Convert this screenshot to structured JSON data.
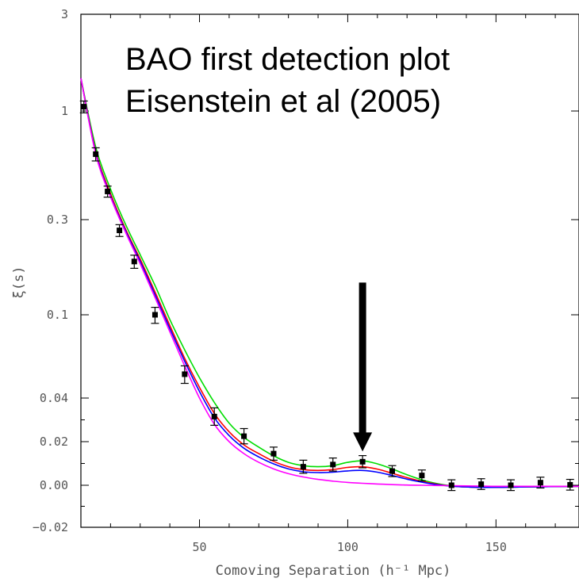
{
  "chart_data": {
    "type": "line",
    "annotation_lines": [
      "BAO first detection plot",
      "Eisenstein et al (2005)"
    ],
    "xlabel": "Comoving Separation (h⁻¹ Mpc)",
    "ylabel": "ξ(s)",
    "xlim": [
      10,
      178
    ],
    "x_ticks": [
      50,
      100,
      150
    ],
    "x_tick_labels": [
      "50",
      "100",
      "150"
    ],
    "y_ticks": [
      -0.02,
      0.0,
      0.02,
      0.04,
      0.1,
      0.3,
      1,
      3
    ],
    "y_tick_labels": [
      "−0.02",
      "0.00",
      "0.02",
      "0.04",
      "0.1",
      "0.3",
      "1",
      "3"
    ],
    "ylim": [
      -0.02,
      3
    ],
    "y_scale": "piecewise (linear near zero, log above)",
    "grid": false,
    "points": [
      {
        "x": 11,
        "y": 1.05,
        "err": 0.07
      },
      {
        "x": 15,
        "y": 0.62,
        "err": 0.045
      },
      {
        "x": 19,
        "y": 0.41,
        "err": 0.025
      },
      {
        "x": 23,
        "y": 0.265,
        "err": 0.018
      },
      {
        "x": 28,
        "y": 0.185,
        "err": 0.014
      },
      {
        "x": 35,
        "y": 0.1,
        "err": 0.009
      },
      {
        "x": 45,
        "y": 0.052,
        "err": 0.005
      },
      {
        "x": 55,
        "y": 0.0315,
        "err": 0.004
      },
      {
        "x": 65,
        "y": 0.0225,
        "err": 0.0035
      },
      {
        "x": 75,
        "y": 0.0145,
        "err": 0.003
      },
      {
        "x": 85,
        "y": 0.0085,
        "err": 0.003
      },
      {
        "x": 95,
        "y": 0.0095,
        "err": 0.003
      },
      {
        "x": 105,
        "y": 0.0108,
        "err": 0.0028
      },
      {
        "x": 115,
        "y": 0.0065,
        "err": 0.0025
      },
      {
        "x": 125,
        "y": 0.0045,
        "err": 0.0025
      },
      {
        "x": 135,
        "y": 0.0,
        "err": 0.0025
      },
      {
        "x": 145,
        "y": 0.0005,
        "err": 0.0025
      },
      {
        "x": 155,
        "y": 0.0,
        "err": 0.0025
      },
      {
        "x": 165,
        "y": 0.0012,
        "err": 0.0025
      },
      {
        "x": 175,
        "y": 0.0002,
        "err": 0.0025
      }
    ],
    "series": [
      {
        "color": "#00dd00",
        "x": [
          10,
          15,
          20,
          25,
          30,
          35,
          40,
          45,
          50,
          55,
          60,
          65,
          70,
          75,
          80,
          85,
          90,
          95,
          100,
          105,
          110,
          115,
          120,
          125,
          130,
          135,
          140,
          145,
          150,
          160,
          170,
          178
        ],
        "values": [
          1.45,
          0.67,
          0.42,
          0.285,
          0.2,
          0.14,
          0.095,
          0.068,
          0.05,
          0.038,
          0.0285,
          0.022,
          0.0175,
          0.0135,
          0.0105,
          0.009,
          0.0085,
          0.009,
          0.0105,
          0.0112,
          0.0098,
          0.0075,
          0.0048,
          0.0025,
          0.0008,
          -0.0003,
          -0.0008,
          -0.001,
          -0.001,
          -0.0008,
          -0.0006,
          -0.0005
        ]
      },
      {
        "color": "#ff0000",
        "x": [
          10,
          15,
          20,
          25,
          30,
          35,
          40,
          45,
          50,
          55,
          60,
          65,
          70,
          75,
          80,
          85,
          90,
          95,
          100,
          105,
          110,
          115,
          120,
          125,
          130,
          135,
          140,
          145,
          150,
          160,
          170,
          178
        ],
        "values": [
          1.45,
          0.64,
          0.4,
          0.27,
          0.19,
          0.13,
          0.089,
          0.062,
          0.045,
          0.033,
          0.0245,
          0.0185,
          0.0145,
          0.011,
          0.0085,
          0.0072,
          0.0068,
          0.0072,
          0.0082,
          0.0085,
          0.0074,
          0.0055,
          0.0035,
          0.0018,
          0.0005,
          -0.0004,
          -0.0008,
          -0.001,
          -0.001,
          -0.0008,
          -0.0006,
          -0.0005
        ]
      },
      {
        "color": "#0000ff",
        "x": [
          10,
          15,
          20,
          25,
          30,
          35,
          40,
          45,
          50,
          55,
          60,
          65,
          70,
          75,
          80,
          85,
          90,
          95,
          100,
          105,
          110,
          115,
          120,
          125,
          130,
          135,
          140,
          145,
          150,
          160,
          170,
          178
        ],
        "values": [
          1.45,
          0.63,
          0.39,
          0.265,
          0.185,
          0.126,
          0.086,
          0.06,
          0.043,
          0.031,
          0.0228,
          0.017,
          0.013,
          0.0098,
          0.0075,
          0.0062,
          0.0058,
          0.006,
          0.0066,
          0.0068,
          0.006,
          0.0045,
          0.0028,
          0.0014,
          0.0003,
          -0.0004,
          -0.0008,
          -0.001,
          -0.001,
          -0.0008,
          -0.0006,
          -0.0005
        ]
      },
      {
        "color": "#ff00ff",
        "x": [
          10,
          15,
          20,
          25,
          30,
          35,
          40,
          45,
          50,
          55,
          60,
          65,
          70,
          75,
          80,
          85,
          90,
          95,
          100,
          105,
          110,
          115,
          120,
          125,
          130,
          135,
          140,
          145,
          150,
          160,
          170,
          178
        ],
        "values": [
          1.45,
          0.62,
          0.385,
          0.26,
          0.18,
          0.122,
          0.083,
          0.057,
          0.04,
          0.028,
          0.02,
          0.0145,
          0.0105,
          0.0075,
          0.0053,
          0.0038,
          0.0027,
          0.0019,
          0.0013,
          0.0009,
          0.0006,
          0.0003,
          0.0001,
          0.0,
          -0.0001,
          -0.0002,
          -0.0003,
          -0.0004,
          -0.0005,
          -0.0005,
          -0.0005,
          -0.0005
        ]
      }
    ],
    "arrow": {
      "x": 105,
      "y_from": 0.145,
      "y_to": 0.0155
    }
  }
}
